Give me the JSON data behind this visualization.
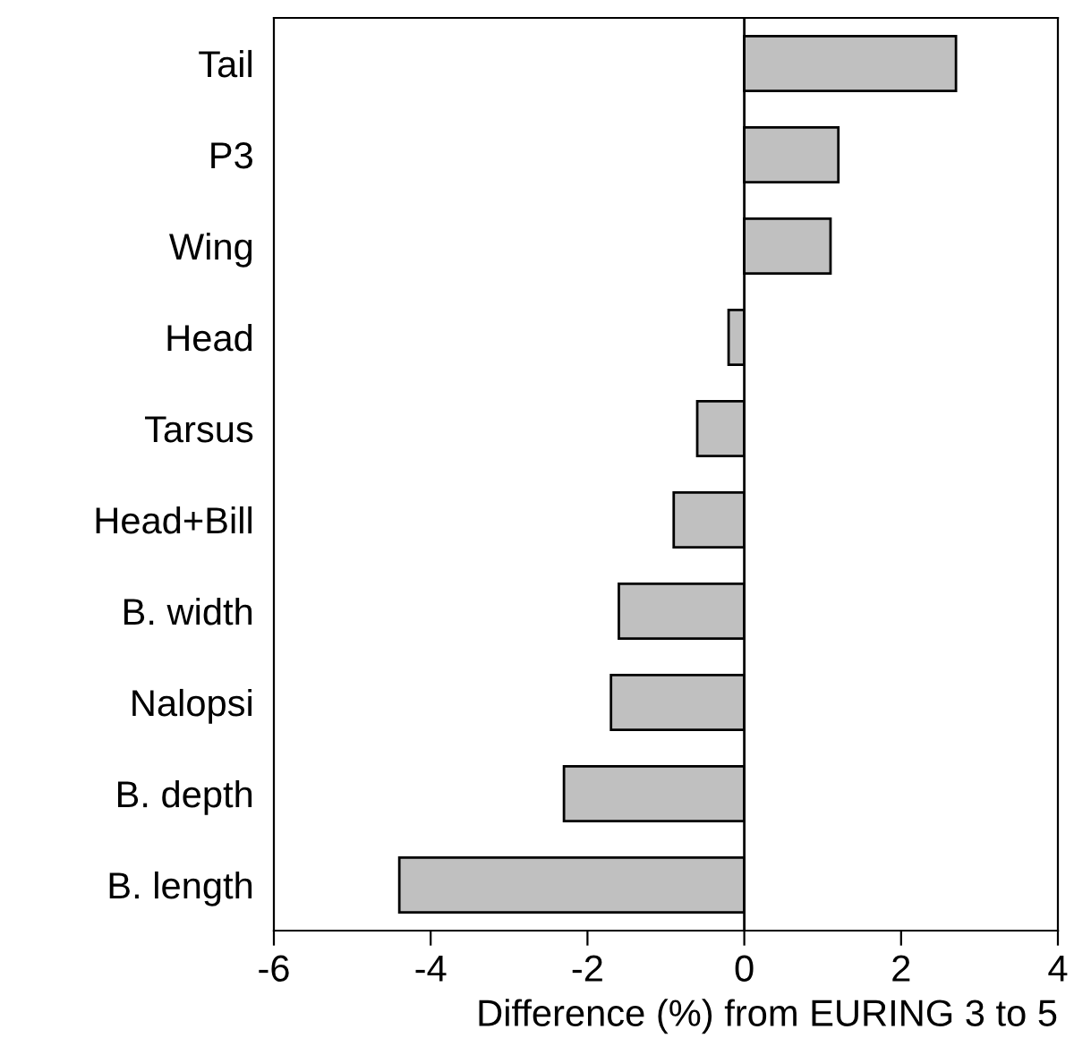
{
  "chart_data": {
    "type": "bar",
    "orientation": "horizontal",
    "xlabel": "Difference (%) from EURING 3 to 5",
    "categories": [
      "Tail",
      "P3",
      "Wing",
      "Head",
      "Tarsus",
      "Head+Bill",
      "B. width",
      "Nalopsi",
      "B. depth",
      "B. length"
    ],
    "values": [
      2.7,
      1.2,
      1.1,
      -0.2,
      -0.6,
      -0.9,
      -1.6,
      -1.7,
      -2.3,
      -4.4
    ],
    "color": "#c0c0c0",
    "xlim": [
      -6,
      4
    ],
    "xticks": [
      -6,
      -4,
      -2,
      0,
      2,
      4
    ],
    "ref_lines": [
      {
        "axis": "x",
        "value": 0,
        "color": "#000000"
      }
    ],
    "grid": false,
    "legend": false
  }
}
